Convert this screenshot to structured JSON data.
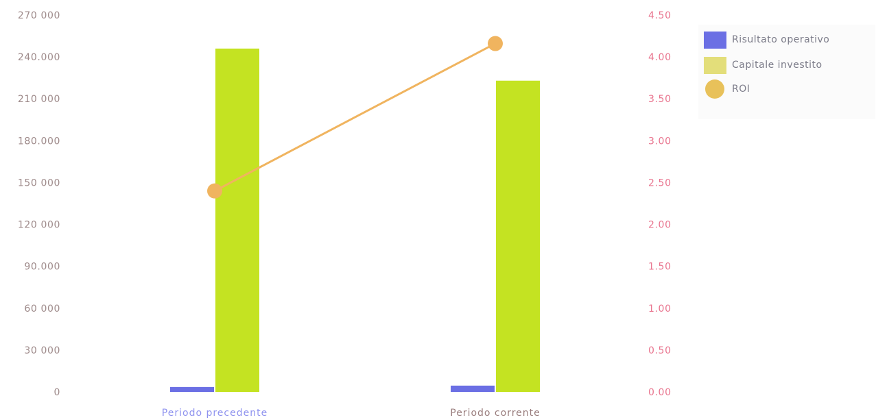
{
  "chart_data": {
    "type": "bar",
    "categories": [
      "Periodo precedente",
      "Periodo corrente"
    ],
    "series": [
      {
        "name": "Risultato operativo",
        "type": "bar",
        "axis": "left",
        "color": "#6b6fe4",
        "values": [
          3500,
          4500
        ]
      },
      {
        "name": "Capitale investito",
        "type": "bar",
        "axis": "left",
        "color": "#c4e322",
        "values": [
          246000,
          223000
        ]
      },
      {
        "name": "ROI",
        "type": "line",
        "axis": "right",
        "color": "#f0b45f",
        "values": [
          2.4,
          4.16
        ]
      }
    ],
    "y_left": {
      "ticks": [
        0,
        30000,
        60000,
        90000,
        120000,
        150000,
        180000,
        210000,
        240000,
        270000
      ],
      "tick_labels": [
        "0",
        "30 000",
        "60 000",
        "90.000",
        "120 000",
        "150 000",
        "180.000",
        "210 000",
        "240.000",
        "270 000"
      ],
      "ylim": [
        0,
        270000
      ]
    },
    "y_right": {
      "ticks": [
        0.0,
        0.5,
        1.0,
        1.5,
        2.0,
        2.5,
        3.0,
        3.5,
        4.0,
        4.5
      ],
      "tick_labels": [
        "0.00",
        "0.50",
        "1.00",
        "1.50",
        "2.00",
        "2.50",
        "3.00",
        "3.50",
        "4.00",
        "4.50"
      ],
      "ylim": [
        0,
        4.5
      ]
    },
    "legend_position": "top-right",
    "category_label_colors": [
      "#8f93ef",
      "#9a7e7e"
    ],
    "axis_left_color": "#9e8a8a",
    "axis_right_color": "#e9758f"
  },
  "legend": {
    "items": [
      {
        "label": "Risultato operativo",
        "color": "#6b6fe4",
        "shape": "square"
      },
      {
        "label": "Capitale investito",
        "color": "#e3de7a",
        "shape": "square"
      },
      {
        "label": "ROI",
        "color": "#e8c15a",
        "shape": "circle"
      }
    ]
  }
}
